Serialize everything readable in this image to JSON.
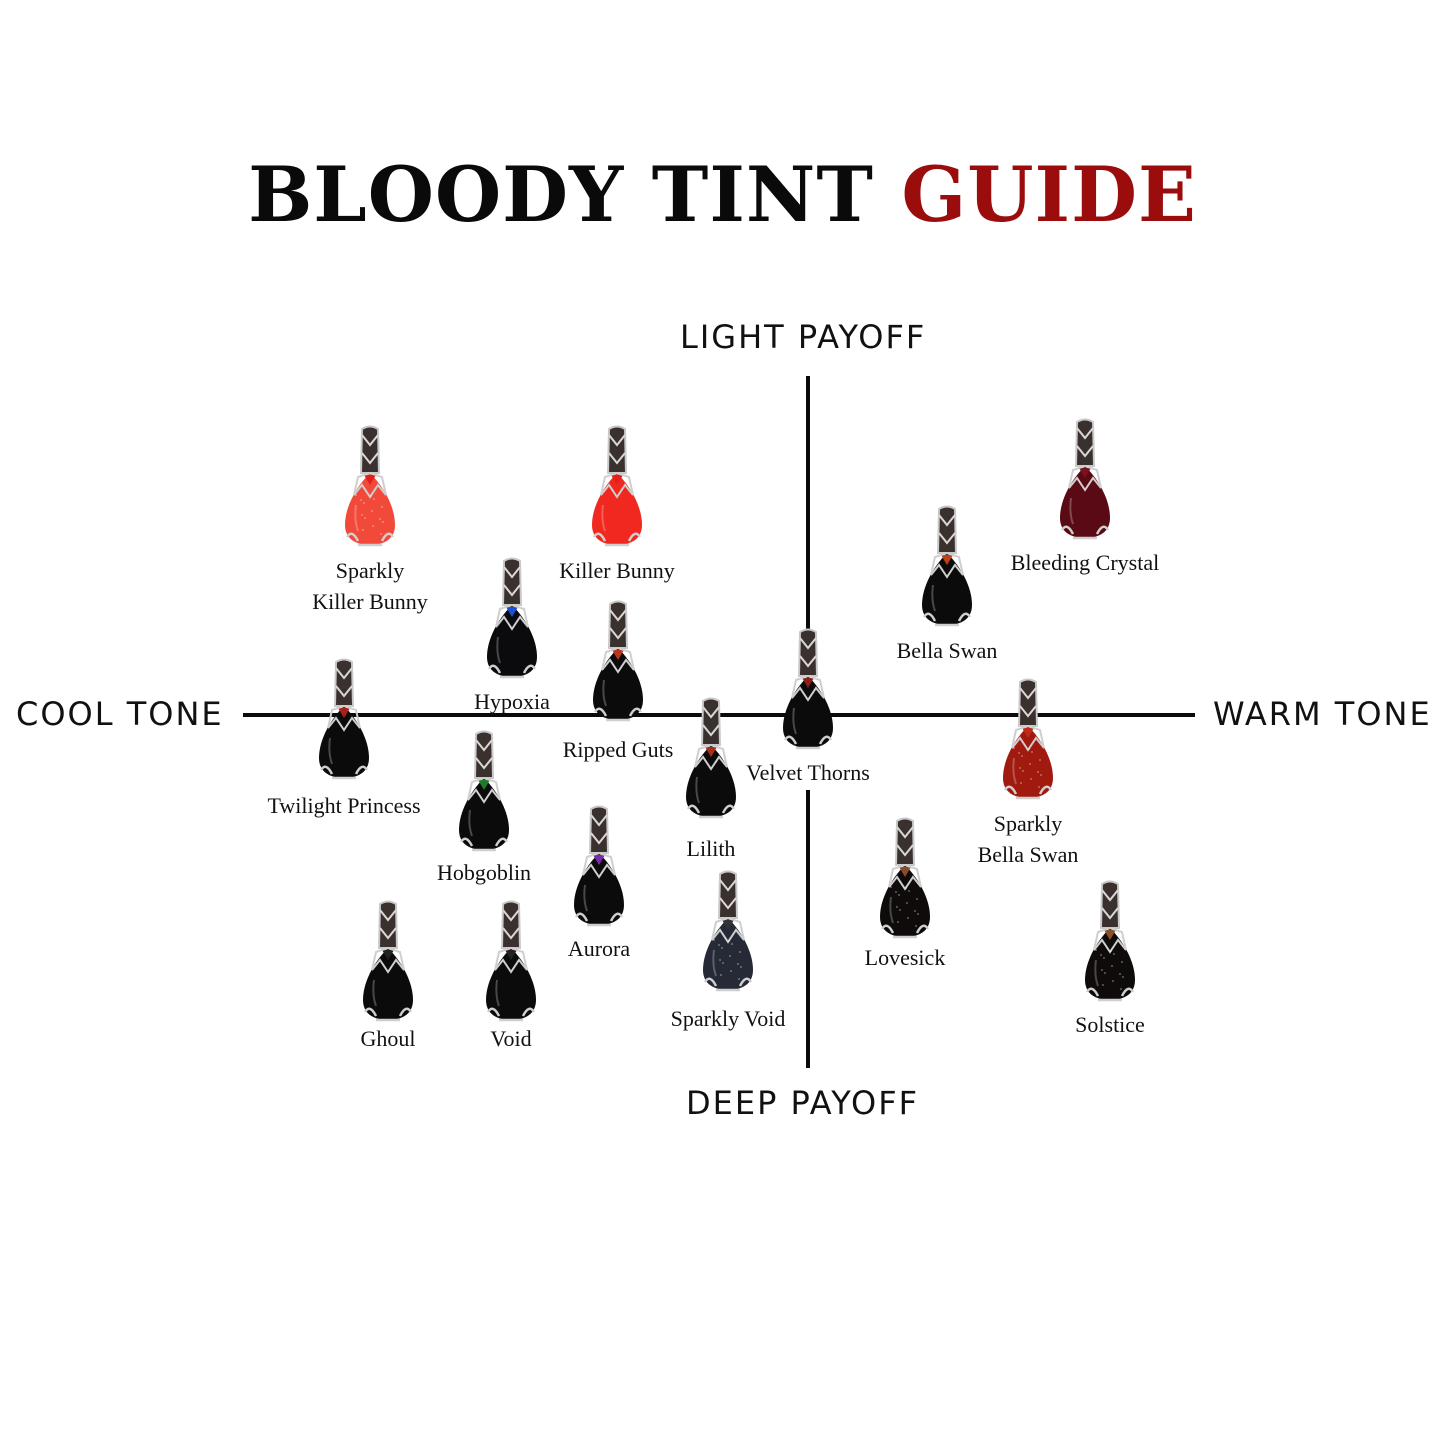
{
  "title": {
    "part1": "BLOODY TINT",
    "part2": "GUIDE",
    "accent_color": "#9b0d0d"
  },
  "axes": {
    "top": "LIGHT PAYOFF",
    "bottom": "DEEP PAYOFF",
    "left": "COOL TONE",
    "right": "WARM TONE"
  },
  "products": [
    {
      "name": "Sparkly Killer Bunny",
      "lines": [
        "Sparkly",
        "Killer Bunny"
      ],
      "color": "#f24a3a",
      "accent": "#e0201a",
      "sparkly": true
    },
    {
      "name": "Killer Bunny",
      "lines": [
        "Killer Bunny"
      ],
      "color": "#f0281f",
      "accent": "#e0201a",
      "sparkly": false
    },
    {
      "name": "Hypoxia",
      "lines": [
        "Hypoxia"
      ],
      "color": "#0b0b0e",
      "accent": "#1a4fd8",
      "sparkly": false
    },
    {
      "name": "Ripped Guts",
      "lines": [
        "Ripped Guts"
      ],
      "color": "#0b0b0b",
      "accent": "#b8341c",
      "sparkly": false
    },
    {
      "name": "Twilight Princess",
      "lines": [
        "Twilight Princess"
      ],
      "color": "#0b0b0b",
      "accent": "#a8201a",
      "sparkly": false
    },
    {
      "name": "Hobgoblin",
      "lines": [
        "Hobgoblin"
      ],
      "color": "#0b0b0b",
      "accent": "#1f7a2e",
      "sparkly": false
    },
    {
      "name": "Aurora",
      "lines": [
        "Aurora"
      ],
      "color": "#0b0b0b",
      "accent": "#7a2ab0",
      "sparkly": false
    },
    {
      "name": "Lilith",
      "lines": [
        "Lilith"
      ],
      "color": "#0b0b0b",
      "accent": "#a83018",
      "sparkly": false
    },
    {
      "name": "Velvet Thorns",
      "lines": [
        "Velvet Thorns"
      ],
      "color": "#0b0b0b",
      "accent": "#8a1f1a",
      "sparkly": false
    },
    {
      "name": "Ghoul",
      "lines": [
        "Ghoul"
      ],
      "color": "#0b0b0b",
      "accent": "#222",
      "sparkly": false
    },
    {
      "name": "Void",
      "lines": [
        "Void"
      ],
      "color": "#0b0b0b",
      "accent": "#222",
      "sparkly": false
    },
    {
      "name": "Sparkly Void",
      "lines": [
        "Sparkly Void"
      ],
      "color": "#262a36",
      "accent": "#333",
      "sparkly": true
    },
    {
      "name": "Lovesick",
      "lines": [
        "Lovesick"
      ],
      "color": "#0e0b0a",
      "accent": "#8a4a2a",
      "sparkly": true
    },
    {
      "name": "Solstice",
      "lines": [
        "Solstice"
      ],
      "color": "#0e0b0a",
      "accent": "#8a5028",
      "sparkly": true
    },
    {
      "name": "Bella Swan",
      "lines": [
        "Bella Swan"
      ],
      "color": "#0b0b0b",
      "accent": "#c0401a",
      "sparkly": false
    },
    {
      "name": "Bleeding Crystal",
      "lines": [
        "Bleeding Crystal"
      ],
      "color": "#5a0a14",
      "accent": "#7a1020",
      "sparkly": false
    },
    {
      "name": "Sparkly Bella Swan",
      "lines": [
        "Sparkly",
        "Bella Swan"
      ],
      "color": "#a01a10",
      "accent": "#c02a18",
      "sparkly": true
    }
  ]
}
